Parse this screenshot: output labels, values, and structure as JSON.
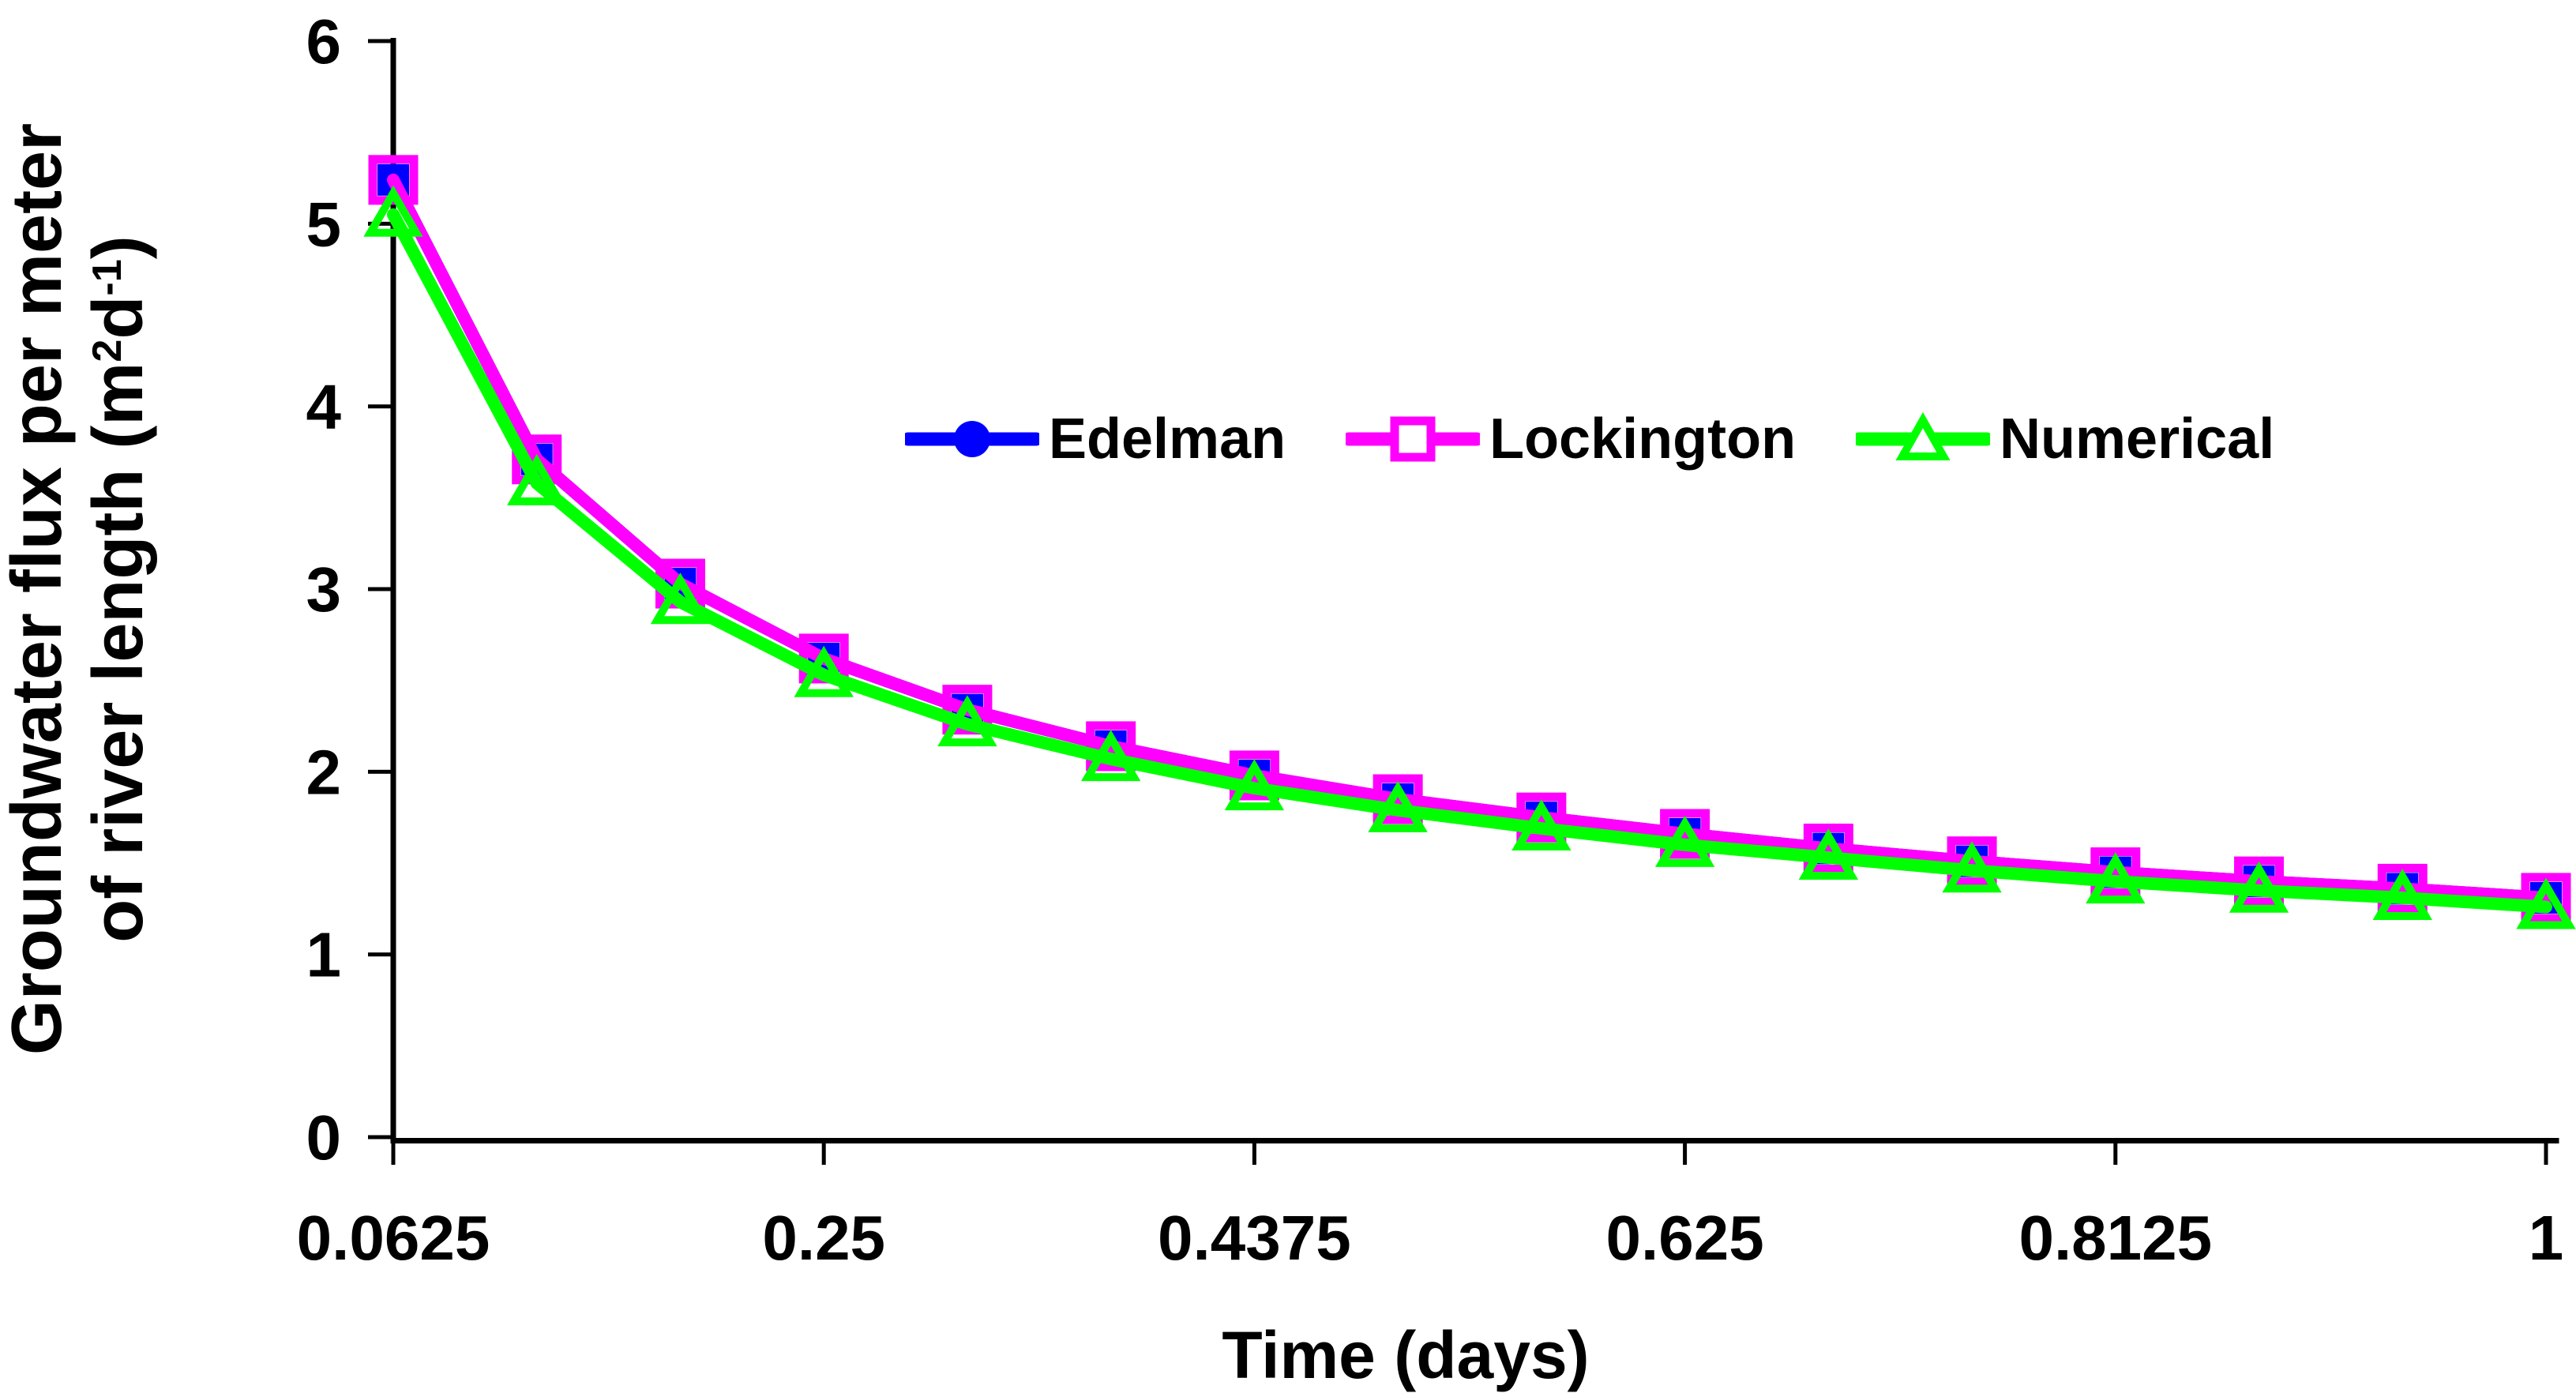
{
  "chart_data": {
    "type": "line",
    "title": "",
    "xlabel": "Time (days)",
    "ylabel": {
      "line1": "Groundwater flux per meter",
      "line2_pre": "of river length (m",
      "line2_sup1": "2",
      "line2_mid": "d",
      "line2_sup2": "-1",
      "line2_post": ")"
    },
    "x": [
      0.0625,
      0.125,
      0.1875,
      0.25,
      0.3125,
      0.375,
      0.4375,
      0.5,
      0.5625,
      0.625,
      0.6875,
      0.75,
      0.8125,
      0.875,
      0.9375,
      1
    ],
    "x_tick_labels": [
      "0.0625",
      "0.25",
      "0.4375",
      "0.625",
      "0.8125",
      "1"
    ],
    "x_tick_indices": [
      0,
      3,
      6,
      9,
      12,
      15
    ],
    "y_ticks": [
      "0",
      "1",
      "2",
      "3",
      "4",
      "5",
      "6"
    ],
    "ylim": [
      0,
      6
    ],
    "grid": false,
    "background": "#ffffff",
    "axis_color": "#000000",
    "legend_position": "top-center-inside",
    "series": [
      {
        "name": "Edelman",
        "color": "#0000ff",
        "legend_marker": "filled-circle",
        "plot_marker": "filled-square",
        "values": [
          5.24,
          3.71,
          3.03,
          2.62,
          2.34,
          2.14,
          1.98,
          1.85,
          1.75,
          1.66,
          1.58,
          1.51,
          1.45,
          1.4,
          1.36,
          1.31
        ]
      },
      {
        "name": "Lockington",
        "color": "#ff00ff",
        "legend_marker": "open-square",
        "plot_marker": "open-square",
        "values": [
          5.24,
          3.71,
          3.03,
          2.62,
          2.34,
          2.14,
          1.98,
          1.85,
          1.75,
          1.66,
          1.58,
          1.51,
          1.45,
          1.4,
          1.36,
          1.31
        ]
      },
      {
        "name": "Numerical",
        "color": "#00ff00",
        "legend_marker": "open-triangle",
        "plot_marker": "open-triangle",
        "values": [
          5.05,
          3.58,
          2.93,
          2.53,
          2.26,
          2.07,
          1.91,
          1.79,
          1.69,
          1.6,
          1.53,
          1.46,
          1.4,
          1.35,
          1.31,
          1.26
        ]
      }
    ]
  }
}
